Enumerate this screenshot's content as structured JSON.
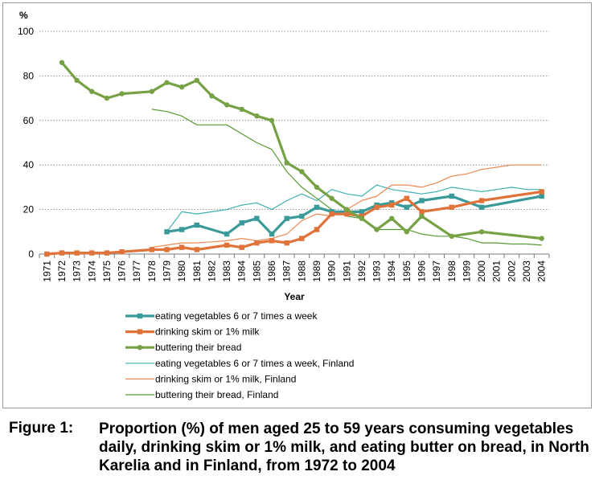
{
  "chart_data": {
    "type": "line",
    "title": "",
    "xlabel": "Year",
    "ylabel": "%",
    "ylim": [
      0,
      100
    ],
    "yticks": [
      0,
      20,
      40,
      60,
      80,
      100
    ],
    "grid": "horizontal dotted",
    "legend_position": "bottom",
    "x": [
      "1971",
      "1972",
      "1973",
      "1974",
      "1975",
      "1976",
      "1977",
      "1978",
      "1979",
      "1980",
      "1981",
      "1982",
      "1983",
      "1984",
      "1985",
      "1986",
      "1987",
      "1988",
      "1989",
      "1990",
      "1991",
      "1992",
      "1993",
      "1994",
      "1995",
      "1996",
      "1997",
      "1998",
      "1999",
      "2000",
      "2001",
      "2002",
      "2003",
      "2004"
    ],
    "series": [
      {
        "name": "eating vegetables 6 or 7 times a week",
        "color": "#3a9a9a",
        "style": "thick-marker",
        "marker": "square",
        "points": [
          [
            1979,
            10
          ],
          [
            1980,
            11
          ],
          [
            1981,
            13
          ],
          [
            1983,
            9
          ],
          [
            1984,
            14
          ],
          [
            1985,
            16
          ],
          [
            1986,
            9
          ],
          [
            1987,
            16
          ],
          [
            1988,
            17
          ],
          [
            1989,
            21
          ],
          [
            1990,
            19
          ],
          [
            1991,
            19
          ],
          [
            1992,
            19
          ],
          [
            1993,
            22
          ],
          [
            1994,
            23
          ],
          [
            1995,
            21
          ],
          [
            1996,
            24
          ],
          [
            1998,
            26
          ],
          [
            2000,
            21
          ],
          [
            2004,
            26
          ]
        ]
      },
      {
        "name": "drinking skim or 1% milk",
        "color": "#e0733a",
        "style": "thick-marker",
        "marker": "square",
        "points": [
          [
            1971,
            0
          ],
          [
            1972,
            0.5
          ],
          [
            1973,
            0.5
          ],
          [
            1974,
            0.5
          ],
          [
            1975,
            0.5
          ],
          [
            1976,
            1
          ],
          [
            1978,
            2
          ],
          [
            1979,
            2
          ],
          [
            1980,
            3
          ],
          [
            1981,
            2
          ],
          [
            1983,
            4
          ],
          [
            1984,
            3
          ],
          [
            1985,
            5
          ],
          [
            1986,
            6
          ],
          [
            1987,
            5
          ],
          [
            1988,
            7
          ],
          [
            1989,
            11
          ],
          [
            1990,
            18
          ],
          [
            1991,
            18
          ],
          [
            1992,
            17
          ],
          [
            1993,
            21
          ],
          [
            1994,
            22
          ],
          [
            1995,
            25
          ],
          [
            1996,
            19
          ],
          [
            1998,
            21
          ],
          [
            2000,
            24
          ],
          [
            2004,
            28
          ]
        ]
      },
      {
        "name": "buttering their bread",
        "color": "#77a145",
        "style": "thick-marker",
        "marker": "circle",
        "points": [
          [
            1972,
            86
          ],
          [
            1973,
            78
          ],
          [
            1974,
            73
          ],
          [
            1975,
            70
          ],
          [
            1976,
            72
          ],
          [
            1978,
            73
          ],
          [
            1979,
            77
          ],
          [
            1980,
            75
          ],
          [
            1981,
            78
          ],
          [
            1982,
            71
          ],
          [
            1983,
            67
          ],
          [
            1984,
            65
          ],
          [
            1985,
            62
          ],
          [
            1986,
            60
          ],
          [
            1987,
            41
          ],
          [
            1988,
            37
          ],
          [
            1989,
            30
          ],
          [
            1990,
            25
          ],
          [
            1991,
            20
          ],
          [
            1992,
            16
          ],
          [
            1993,
            11
          ],
          [
            1994,
            16
          ],
          [
            1995,
            10
          ],
          [
            1996,
            17
          ],
          [
            1998,
            8
          ],
          [
            2000,
            10
          ],
          [
            2004,
            7
          ]
        ]
      },
      {
        "name": "eating vegetables 6 or 7 times a week, Finland",
        "color": "#3fb0b0",
        "style": "thin",
        "points": [
          [
            1979,
            10
          ],
          [
            1980,
            19
          ],
          [
            1981,
            18
          ],
          [
            1982,
            19
          ],
          [
            1983,
            20
          ],
          [
            1984,
            22
          ],
          [
            1985,
            23
          ],
          [
            1986,
            20
          ],
          [
            1987,
            24
          ],
          [
            1988,
            27
          ],
          [
            1989,
            24
          ],
          [
            1990,
            29
          ],
          [
            1991,
            27
          ],
          [
            1992,
            26
          ],
          [
            1993,
            31
          ],
          [
            1994,
            29
          ],
          [
            1995,
            28
          ],
          [
            1996,
            27
          ],
          [
            1997,
            28
          ],
          [
            1998,
            30
          ],
          [
            1999,
            29
          ],
          [
            2000,
            28
          ],
          [
            2001,
            29
          ],
          [
            2002,
            30
          ],
          [
            2003,
            29
          ],
          [
            2004,
            29
          ]
        ]
      },
      {
        "name": "drinking skim or 1% milk, Finland",
        "color": "#ec8a55",
        "style": "thin",
        "points": [
          [
            1978,
            3
          ],
          [
            1979,
            4
          ],
          [
            1980,
            5
          ],
          [
            1981,
            5
          ],
          [
            1982,
            5.5
          ],
          [
            1983,
            6
          ],
          [
            1984,
            7
          ],
          [
            1985,
            6
          ],
          [
            1986,
            7
          ],
          [
            1987,
            9
          ],
          [
            1988,
            15
          ],
          [
            1989,
            18
          ],
          [
            1990,
            17
          ],
          [
            1991,
            20
          ],
          [
            1992,
            24
          ],
          [
            1993,
            26
          ],
          [
            1994,
            31
          ],
          [
            1995,
            31
          ],
          [
            1996,
            30
          ],
          [
            1997,
            32
          ],
          [
            1998,
            35
          ],
          [
            1999,
            36
          ],
          [
            2000,
            38
          ],
          [
            2001,
            39
          ],
          [
            2002,
            40
          ],
          [
            2003,
            40
          ],
          [
            2004,
            40
          ]
        ]
      },
      {
        "name": "buttering their bread, Finland",
        "color": "#5a9a32",
        "style": "thin",
        "points": [
          [
            1978,
            65
          ],
          [
            1979,
            64
          ],
          [
            1980,
            62
          ],
          [
            1981,
            58
          ],
          [
            1982,
            58
          ],
          [
            1983,
            58
          ],
          [
            1984,
            54
          ],
          [
            1985,
            50
          ],
          [
            1986,
            47
          ],
          [
            1987,
            37
          ],
          [
            1988,
            30
          ],
          [
            1989,
            25
          ],
          [
            1990,
            20
          ],
          [
            1991,
            17
          ],
          [
            1992,
            16
          ],
          [
            1993,
            11
          ],
          [
            1994,
            11
          ],
          [
            1995,
            11
          ],
          [
            1996,
            9
          ],
          [
            1997,
            8
          ],
          [
            1998,
            8
          ],
          [
            1999,
            7
          ],
          [
            2000,
            5
          ],
          [
            2001,
            5
          ],
          [
            2002,
            4.5
          ],
          [
            2003,
            4.5
          ],
          [
            2004,
            4
          ]
        ]
      }
    ]
  },
  "caption": {
    "label": "Figure 1:",
    "text": "Proportion (%) of men aged 25 to 59 years consuming vegetables daily, drinking skim or 1% milk, and eating butter on bread, in North Karelia and in Finland, from 1972 to 2004"
  }
}
